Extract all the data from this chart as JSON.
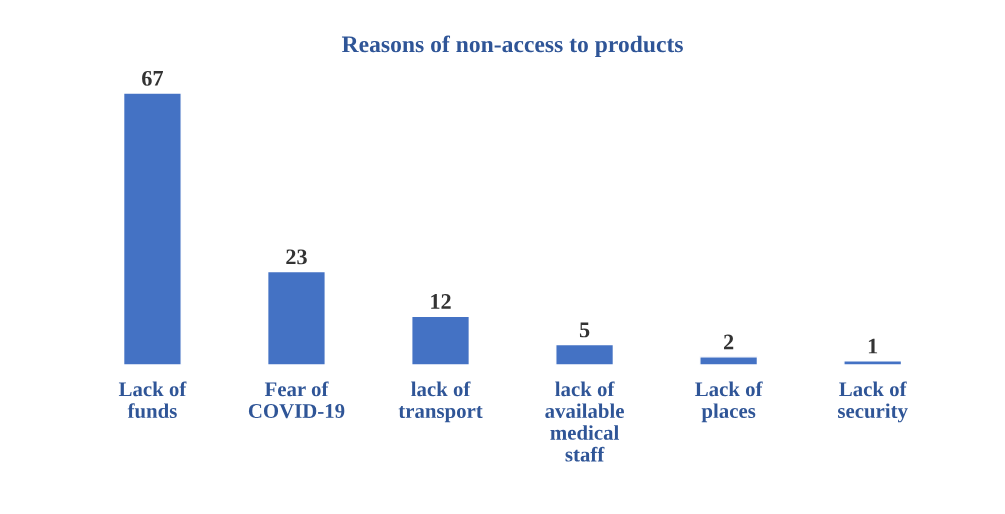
{
  "chart_data": {
    "type": "bar",
    "title": "Reasons of non-access to products",
    "categories": [
      "Lack of funds",
      "Fear of COVID-19",
      "lack of transport",
      "lack of available medical staff",
      "Lack of places",
      "Lack of security"
    ],
    "values": [
      67,
      23,
      12,
      5,
      2,
      1
    ],
    "color": "#4472c4",
    "data_labels": true,
    "grid": false,
    "legend": false
  }
}
